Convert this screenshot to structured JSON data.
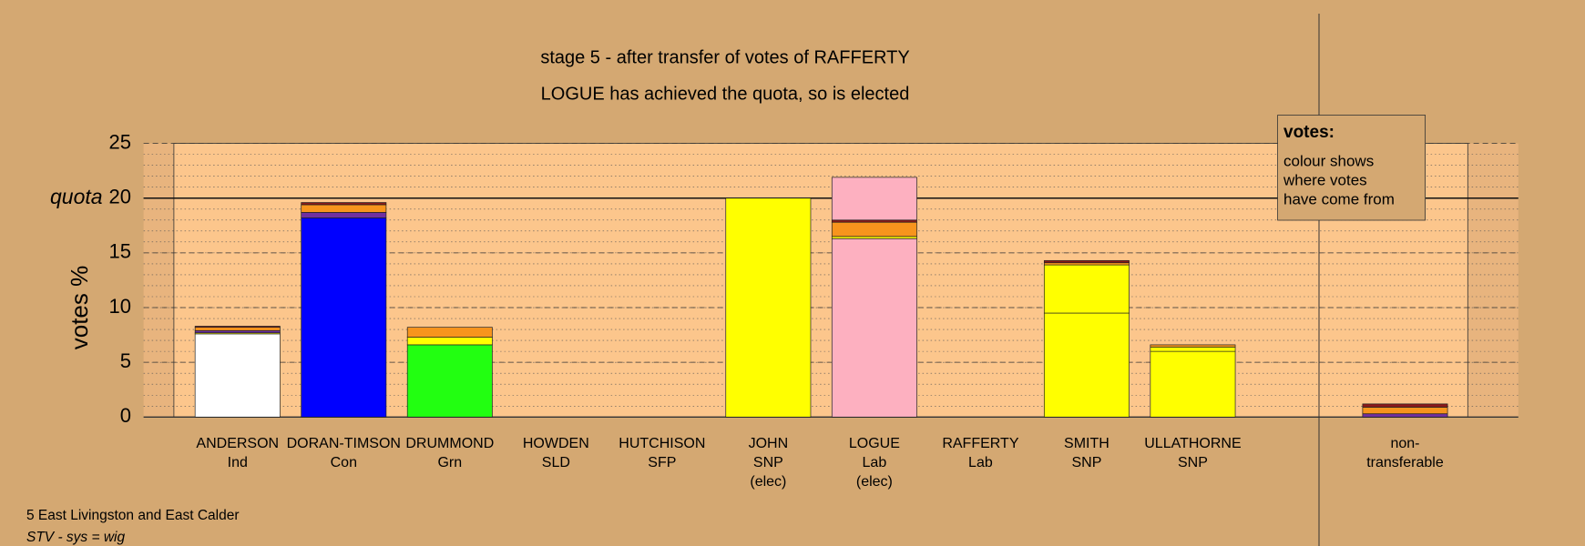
{
  "chart_data": {
    "type": "stacked_bar",
    "title": "stage 5 - after transfer of votes of RAFFERTY",
    "subtitle": "LOGUE has achieved the quota, so is elected",
    "y_label": "votes %",
    "categories": [
      [
        "ANDERSON",
        "Ind"
      ],
      [
        "DORAN-TIMSON",
        "Con"
      ],
      [
        "DRUMMOND",
        "Grn"
      ],
      [
        "HOWDEN",
        "SLD"
      ],
      [
        "HUTCHISON",
        "SFP"
      ],
      [
        "JOHN",
        "SNP",
        "(elec)"
      ],
      [
        "LOGUE",
        "Lab",
        "(elec)"
      ],
      [
        "RAFFERTY",
        "Lab"
      ],
      [
        "SMITH",
        "SNP"
      ],
      [
        "ULLATHORNE",
        "SNP"
      ],
      [
        "non-",
        "transferable"
      ]
    ],
    "series": [
      {
        "colors": [
          "#ffffff",
          "#0000ff",
          "#22ff11",
          "#f7941d",
          "#7030a0",
          "#ffff00",
          "#fdb0c0",
          "#fdb0c0",
          "#ffff00",
          "#ffff00",
          "#cccccc"
        ],
        "values": [
          7.6,
          18.2,
          6.6,
          0,
          0,
          20.0,
          16.3,
          0,
          9.5,
          6.0,
          0
        ]
      },
      {
        "color": "#ffff00",
        "values": [
          0.1,
          0,
          0.7,
          0,
          0,
          0,
          0.2,
          0,
          4.4,
          0.4,
          0
        ]
      },
      {
        "color": "#7030a0",
        "values": [
          0.2,
          0.5,
          0,
          0,
          0,
          0,
          0,
          0,
          0,
          0,
          0.3
        ]
      },
      {
        "color": "#f7941d",
        "values": [
          0.3,
          0.7,
          0.9,
          0,
          0,
          0,
          1.3,
          0,
          0.2,
          0.2,
          0.6
        ]
      },
      {
        "color": "#8b1a1a",
        "values": [
          0.1,
          0.2,
          0,
          0,
          0,
          0,
          0.2,
          0,
          0.2,
          0,
          0.3
        ]
      },
      {
        "color": "#fdb0c0",
        "values": [
          0,
          0,
          0,
          0,
          0,
          0,
          3.9,
          0,
          0,
          0,
          0
        ]
      }
    ],
    "ylim": [
      0,
      25
    ],
    "yticks": [
      0,
      5,
      10,
      15,
      20,
      25
    ],
    "minor_grid_step": 1,
    "quota": {
      "value": 20,
      "label": "quota"
    },
    "legend_box": {
      "heading": "votes:",
      "lines": [
        "colour shows",
        "where votes",
        "have come from"
      ]
    },
    "footer": [
      "5 East Livingston and East Calder",
      "STV - sys = wig"
    ]
  }
}
